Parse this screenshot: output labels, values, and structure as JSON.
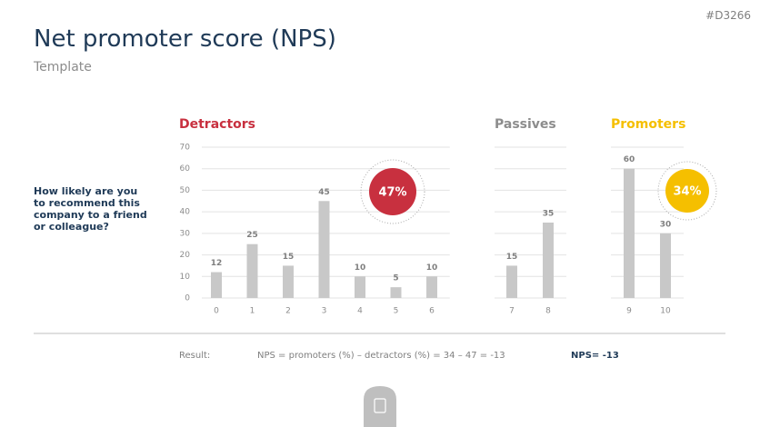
{
  "header": {
    "title": "Net promoter score (NPS)",
    "subtitle": "Template",
    "code": "#D3266"
  },
  "question": "How likely are you to recommend this company to a friend or colleague?",
  "result": {
    "label": "Result:",
    "formula": "NPS = promoters (%) – detractors (%) = 34 – 47 = -13",
    "score": "NPS= -13"
  },
  "chart_data": [
    {
      "type": "bar",
      "title": "Detractors",
      "title_color": "#c8303f",
      "color": "#c8c8c8",
      "categories": [
        "0",
        "1",
        "2",
        "3",
        "4",
        "5",
        "6"
      ],
      "values": [
        12,
        25,
        15,
        45,
        10,
        5,
        10
      ],
      "ylim": [
        0,
        70
      ],
      "yticks": [
        0,
        10,
        20,
        30,
        40,
        50,
        60,
        70
      ],
      "grid": true,
      "total_pct": {
        "value": 47,
        "label": "47%"
      },
      "badge_color": "#c8303f"
    },
    {
      "type": "bar",
      "title": "Passives",
      "title_color": "#8c8c8c",
      "color": "#c8c8c8",
      "categories": [
        "7",
        "8"
      ],
      "values": [
        15,
        35
      ],
      "grid": true
    },
    {
      "type": "bar",
      "title": "Promoters",
      "title_color": "#f5bf00",
      "color": "#c8c8c8",
      "categories": [
        "9",
        "10"
      ],
      "values": [
        60,
        30
      ],
      "grid": true,
      "total_pct": {
        "value": 34,
        "label": "34%"
      },
      "badge_color": "#f5bf00"
    }
  ]
}
